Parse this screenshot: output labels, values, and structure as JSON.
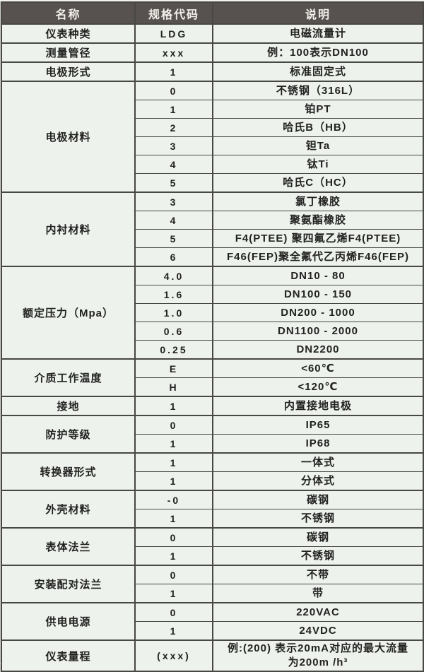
{
  "colors": {
    "header_bg": "#57524f",
    "header_text": "#f3f0ec",
    "body_bg": "#edf2ed",
    "border": "#474745",
    "text": "#222220",
    "page_bottom_band": "#d4d4d0"
  },
  "table": {
    "headers": [
      "名称",
      "规格代码",
      "说明"
    ],
    "groups": [
      {
        "name": "仪表种类",
        "rows": [
          {
            "code": "LDG",
            "desc": "电磁流量计"
          }
        ]
      },
      {
        "name": "测量管径",
        "rows": [
          {
            "code": "xxx",
            "desc": "例：100表示DN100"
          }
        ]
      },
      {
        "name": "电极形式",
        "rows": [
          {
            "code": "1",
            "desc": "标准固定式"
          }
        ]
      },
      {
        "name": "电极材料",
        "rows": [
          {
            "code": "0",
            "desc": "不锈钢（316L）"
          },
          {
            "code": "1",
            "desc": "铂PT"
          },
          {
            "code": "2",
            "desc": "哈氏B（HB）"
          },
          {
            "code": "3",
            "desc": "钽Ta"
          },
          {
            "code": "4",
            "desc": "钛Ti"
          },
          {
            "code": "5",
            "desc": "哈氏C（HC）"
          }
        ]
      },
      {
        "name": "内衬材料",
        "rows": [
          {
            "code": "3",
            "desc": "氯丁橡胶"
          },
          {
            "code": "4",
            "desc": "聚氨酯橡胶"
          },
          {
            "code": "5",
            "desc": "F4(PTEE) 聚四氟乙烯F4(PTEE)"
          },
          {
            "code": "6",
            "desc": "F46(FEP)聚全氟代乙丙烯F46(FEP)"
          }
        ]
      },
      {
        "name": "额定压力（Mpa）",
        "rows": [
          {
            "code": "4.0",
            "desc": "DN10 - 80"
          },
          {
            "code": "1.6",
            "desc": "DN100 - 150"
          },
          {
            "code": "1.0",
            "desc": "DN200 - 1000"
          },
          {
            "code": "0.6",
            "desc": "DN1100 - 2000"
          },
          {
            "code": "0.25",
            "desc": "DN2200"
          }
        ]
      },
      {
        "name": "介质工作温度",
        "rows": [
          {
            "code": "E",
            "desc": "<60℃"
          },
          {
            "code": "H",
            "desc": "<120℃"
          }
        ]
      },
      {
        "name": "接地",
        "rows": [
          {
            "code": "1",
            "desc": "内置接地电极"
          }
        ]
      },
      {
        "name": "防护等级",
        "rows": [
          {
            "code": "0",
            "desc": "IP65"
          },
          {
            "code": "1",
            "desc": "IP68"
          }
        ]
      },
      {
        "name": "转换器形式",
        "rows": [
          {
            "code": "1",
            "desc": "一体式"
          },
          {
            "code": "1",
            "desc": "分体式"
          }
        ]
      },
      {
        "name": "外壳材料",
        "rows": [
          {
            "code": "-0",
            "desc": "碳钢"
          },
          {
            "code": "1",
            "desc": "不锈钢"
          }
        ]
      },
      {
        "name": "表体法兰",
        "rows": [
          {
            "code": "0",
            "desc": "碳钢"
          },
          {
            "code": "1",
            "desc": "不锈钢"
          }
        ]
      },
      {
        "name": "安装配对法兰",
        "rows": [
          {
            "code": "0",
            "desc": "不带"
          },
          {
            "code": "1",
            "desc": "带"
          }
        ]
      },
      {
        "name": "供电电源",
        "rows": [
          {
            "code": "0",
            "desc": "220VAC"
          },
          {
            "code": "1",
            "desc": "24VDC"
          }
        ]
      },
      {
        "name": "仪表量程",
        "rows": [
          {
            "code": "(xxx)",
            "desc": "例:(200) 表示20mA对应的最大流量为200m /h³",
            "tall": true
          }
        ]
      }
    ]
  }
}
